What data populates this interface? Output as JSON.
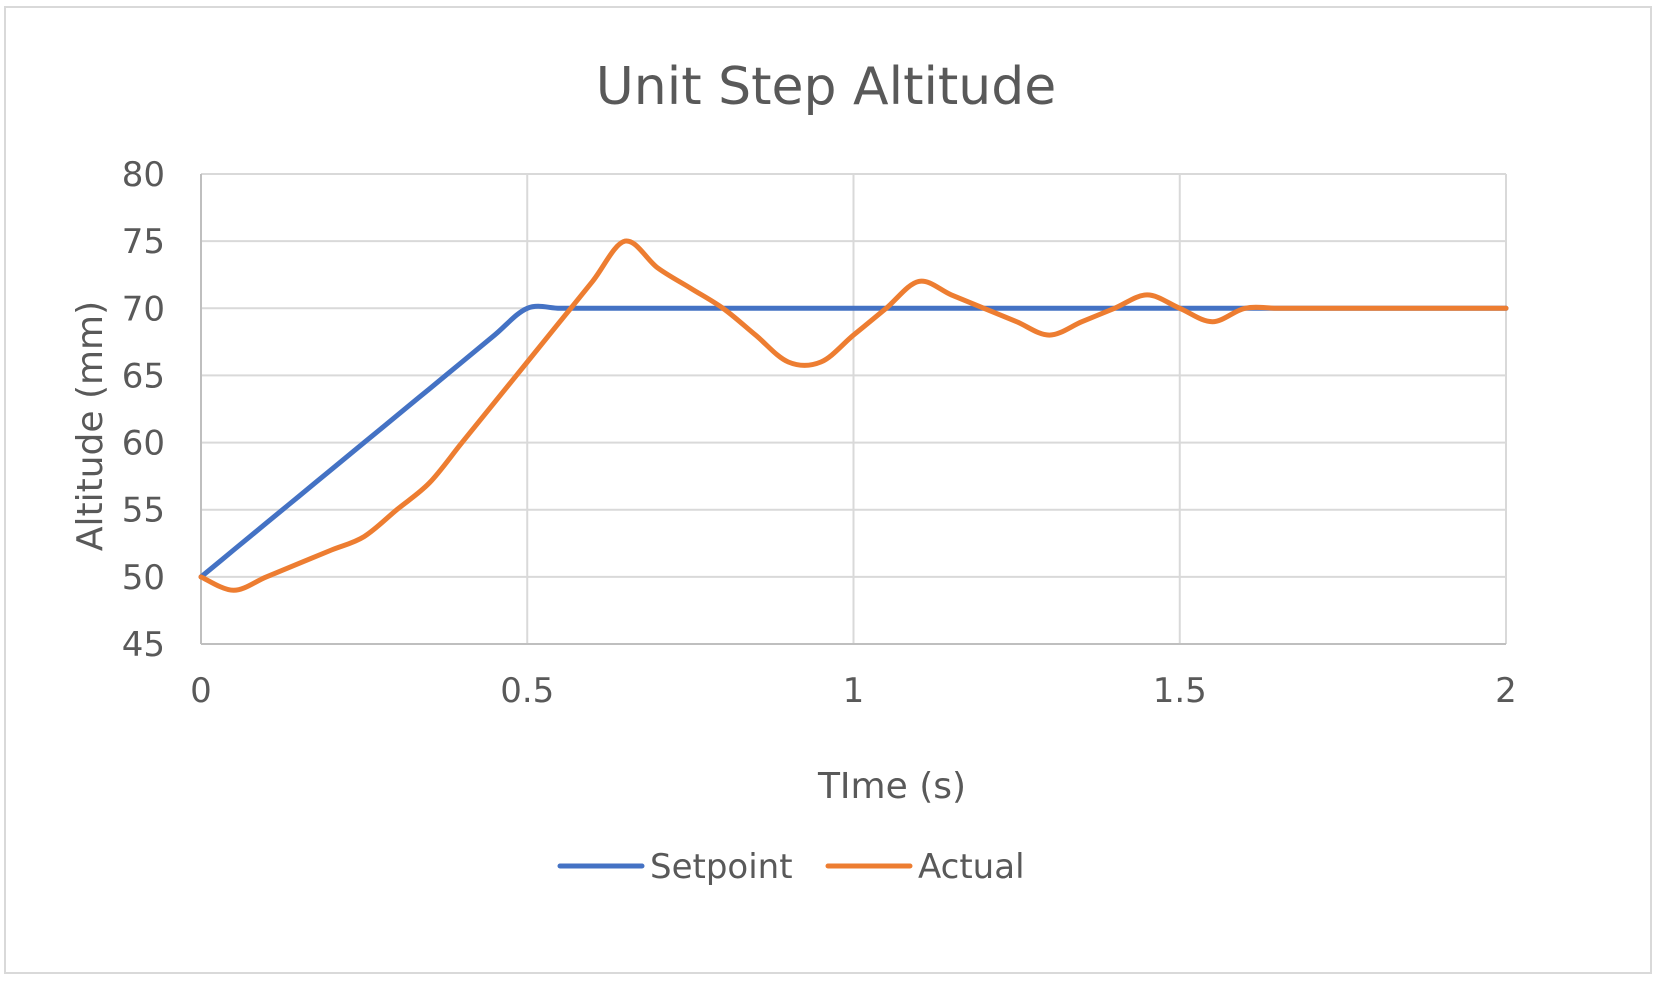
{
  "chart_data": {
    "type": "line",
    "title": "Unit Step Altitude",
    "xlabel": "TIme (s)",
    "ylabel": "Altitude (mm)",
    "xlim": [
      0,
      2
    ],
    "ylim": [
      45,
      80
    ],
    "x_ticks": [
      "0",
      "0.5",
      "1",
      "1.5",
      "2"
    ],
    "y_ticks": [
      "45",
      "50",
      "55",
      "60",
      "65",
      "70",
      "75",
      "80"
    ],
    "grid": true,
    "legend_position": "bottom",
    "series": [
      {
        "name": "Setpoint",
        "color": "#4472C4",
        "x": [
          0,
          0.05,
          0.1,
          0.15,
          0.2,
          0.25,
          0.3,
          0.35,
          0.4,
          0.45,
          0.5,
          0.55,
          0.6,
          0.65,
          0.7,
          0.75,
          0.8,
          0.85,
          0.9,
          0.95,
          1,
          1.05,
          1.1,
          1.15,
          1.2,
          1.25,
          1.3,
          1.35,
          1.4,
          1.45,
          1.5,
          1.55,
          1.6,
          1.65,
          1.7,
          1.75,
          1.8,
          1.85,
          1.9,
          1.95,
          2
        ],
        "y": [
          50,
          52,
          54,
          56,
          58,
          60,
          62,
          64,
          66,
          68,
          70,
          70,
          70,
          70,
          70,
          70,
          70,
          70,
          70,
          70,
          70,
          70,
          70,
          70,
          70,
          70,
          70,
          70,
          70,
          70,
          70,
          70,
          70,
          70,
          70,
          70,
          70,
          70,
          70,
          70,
          70
        ]
      },
      {
        "name": "Actual",
        "color": "#ED7D31",
        "x": [
          0,
          0.05,
          0.1,
          0.15,
          0.2,
          0.25,
          0.3,
          0.35,
          0.4,
          0.45,
          0.5,
          0.55,
          0.6,
          0.65,
          0.7,
          0.75,
          0.8,
          0.85,
          0.9,
          0.95,
          1,
          1.05,
          1.1,
          1.15,
          1.2,
          1.25,
          1.3,
          1.35,
          1.4,
          1.45,
          1.5,
          1.55,
          1.6,
          1.65,
          1.7,
          1.75,
          1.8,
          1.85,
          1.9,
          1.95,
          2
        ],
        "y": [
          50,
          49,
          50,
          51,
          52,
          53,
          55,
          57,
          60,
          63,
          66,
          69,
          72,
          75,
          73,
          71.5,
          70,
          68,
          66,
          66,
          68,
          70,
          72,
          71,
          70,
          69,
          68,
          69,
          70,
          71,
          70,
          69,
          70,
          70,
          70,
          70,
          70,
          70,
          70,
          70,
          70
        ]
      }
    ]
  }
}
